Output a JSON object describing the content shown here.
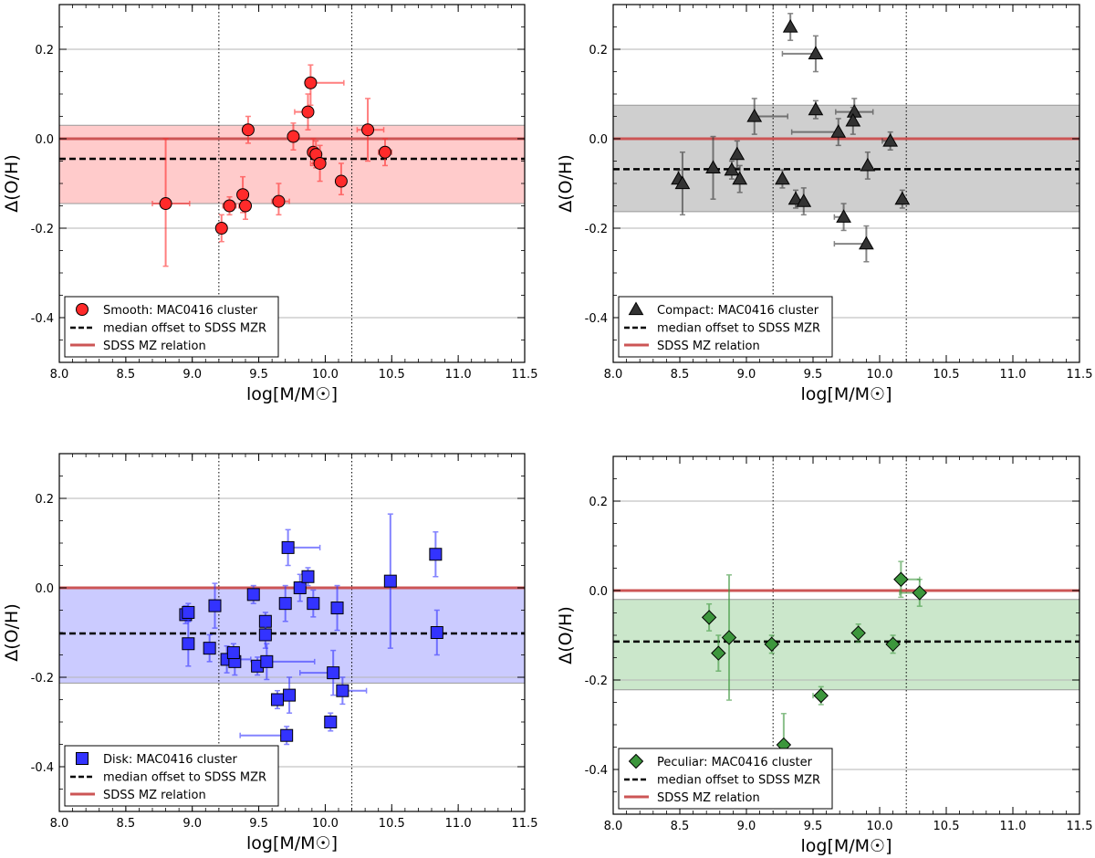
{
  "figure": {
    "x_tick_labels": [
      "8.0",
      "8.5",
      "9.0",
      "9.5",
      "10.0",
      "10.5",
      "11.0",
      "11.5"
    ],
    "y_tick_labels": [
      "0.2",
      "0.0",
      "-0.2",
      "-0.4"
    ]
  },
  "chart_data": [
    {
      "type": "scatter",
      "panel": "top-left",
      "xlabel": "log[M/M☉]",
      "ylabel": "Δ(O/H)",
      "xlim": [
        8.0,
        11.5
      ],
      "ylim": [
        -0.5,
        0.3
      ],
      "xticks": [
        8.0,
        8.5,
        9.0,
        9.5,
        10.0,
        10.5,
        11.0,
        11.5
      ],
      "yticks": [
        0.2,
        0.0,
        -0.2,
        -0.4
      ],
      "grid_y": [
        0.2,
        0.0,
        -0.2,
        -0.4
      ],
      "vlines": [
        9.2,
        10.2
      ],
      "reference_line": 0.0,
      "median_offset": -0.045,
      "band": [
        -0.145,
        0.03
      ],
      "color": "#ff2a2a",
      "band_color": "#ffc8c8",
      "marker": "circle",
      "legend": {
        "location": "lower-left",
        "entries": [
          "Smooth: MAC0416 cluster",
          "median offset to SDSS MZR",
          "SDSS MZ relation"
        ]
      },
      "points": [
        {
          "x": 8.8,
          "y": -0.145,
          "yerr": [
            0.14,
            0.145
          ],
          "xerr": [
            0.1,
            0.18
          ]
        },
        {
          "x": 9.22,
          "y": -0.2,
          "yerr": [
            0.03,
            0.03
          ],
          "xerr": [
            0.0,
            0.0
          ]
        },
        {
          "x": 9.28,
          "y": -0.15,
          "yerr": [
            0.02,
            0.02
          ],
          "xerr": [
            0.05,
            0.05
          ]
        },
        {
          "x": 9.38,
          "y": -0.125,
          "yerr": [
            0.04,
            0.04
          ],
          "xerr": [
            0.04,
            0.04
          ]
        },
        {
          "x": 9.4,
          "y": -0.15,
          "yerr": [
            0.03,
            0.03
          ],
          "xerr": [
            0.05,
            0.03
          ]
        },
        {
          "x": 9.42,
          "y": 0.02,
          "yerr": [
            0.03,
            0.03
          ],
          "xerr": [
            0.02,
            0.02
          ]
        },
        {
          "x": 9.65,
          "y": -0.14,
          "yerr": [
            0.03,
            0.04
          ],
          "xerr": [
            0.05,
            0.08
          ]
        },
        {
          "x": 9.76,
          "y": 0.005,
          "yerr": [
            0.03,
            0.03
          ],
          "xerr": [
            0.0,
            0.0
          ]
        },
        {
          "x": 9.87,
          "y": 0.06,
          "yerr": [
            0.04,
            0.04
          ],
          "xerr": [
            0.1,
            0.0
          ]
        },
        {
          "x": 9.89,
          "y": 0.125,
          "yerr": [
            0.05,
            0.04
          ],
          "xerr": [
            0.02,
            0.25
          ]
        },
        {
          "x": 9.91,
          "y": -0.03,
          "yerr": [
            0.03,
            0.03
          ],
          "xerr": [
            0.04,
            0.02
          ]
        },
        {
          "x": 9.93,
          "y": -0.035,
          "yerr": [
            0.03,
            0.03
          ],
          "xerr": [
            0.04,
            0.02
          ]
        },
        {
          "x": 9.96,
          "y": -0.055,
          "yerr": [
            0.04,
            0.04
          ],
          "xerr": [
            0.07,
            0.03
          ]
        },
        {
          "x": 10.12,
          "y": -0.095,
          "yerr": [
            0.03,
            0.04
          ],
          "xerr": [
            0.0,
            0.0
          ]
        },
        {
          "x": 10.32,
          "y": 0.02,
          "yerr": [
            0.07,
            0.07
          ],
          "xerr": [
            0.08,
            0.12
          ]
        },
        {
          "x": 10.45,
          "y": -0.03,
          "yerr": [
            0.03,
            0.03
          ],
          "xerr": [
            0.05,
            0.05
          ]
        }
      ]
    },
    {
      "type": "scatter",
      "panel": "top-right",
      "xlabel": "log[M/M☉]",
      "ylabel": "Δ(O/H)",
      "xlim": [
        8.0,
        11.5
      ],
      "ylim": [
        -0.5,
        0.3
      ],
      "xticks": [
        8.0,
        8.5,
        9.0,
        9.5,
        10.0,
        10.5,
        11.0,
        11.5
      ],
      "yticks": [
        0.2,
        0.0,
        -0.2,
        -0.4
      ],
      "grid_y": [
        0.2,
        0.0,
        -0.2,
        -0.4
      ],
      "vlines": [
        9.2,
        10.2
      ],
      "reference_line": 0.0,
      "median_offset": -0.068,
      "band": [
        -0.163,
        0.075
      ],
      "color": "#333333",
      "band_color": "#cccccc",
      "marker": "triangle",
      "legend": {
        "location": "lower-left",
        "entries": [
          "Compact: MAC0416 cluster",
          "median offset to SDSS MZR",
          "SDSS MZ relation"
        ]
      },
      "points": [
        {
          "x": 9.33,
          "y": 0.25,
          "yerr": [
            0.03,
            0.03
          ],
          "xerr": [
            0.0,
            0.0
          ]
        },
        {
          "x": 9.52,
          "y": 0.19,
          "yerr": [
            0.04,
            0.04
          ],
          "xerr": [
            0.25,
            0.0
          ]
        },
        {
          "x": 9.52,
          "y": 0.065,
          "yerr": [
            0.02,
            0.02
          ],
          "xerr": [
            0.0,
            0.0
          ]
        },
        {
          "x": 9.06,
          "y": 0.05,
          "yerr": [
            0.04,
            0.04
          ],
          "xerr": [
            0.0,
            0.25
          ]
        },
        {
          "x": 9.81,
          "y": 0.06,
          "yerr": [
            0.03,
            0.03
          ],
          "xerr": [
            0.14,
            0.14
          ]
        },
        {
          "x": 9.8,
          "y": 0.04,
          "yerr": [
            0.03,
            0.03
          ],
          "xerr": [
            0.0,
            0.0
          ]
        },
        {
          "x": 9.69,
          "y": 0.015,
          "yerr": [
            0.03,
            0.03
          ],
          "xerr": [
            0.35,
            0.0
          ]
        },
        {
          "x": 10.08,
          "y": -0.005,
          "yerr": [
            0.02,
            0.02
          ],
          "xerr": [
            0.06,
            0.0
          ]
        },
        {
          "x": 8.49,
          "y": -0.09,
          "yerr": [
            0.02,
            0.02
          ],
          "xerr": [
            0.0,
            0.0
          ]
        },
        {
          "x": 8.52,
          "y": -0.1,
          "yerr": [
            0.07,
            0.07
          ],
          "xerr": [
            0.0,
            0.0
          ]
        },
        {
          "x": 8.75,
          "y": -0.065,
          "yerr": [
            0.07,
            0.07
          ],
          "xerr": [
            0.0,
            0.0
          ]
        },
        {
          "x": 8.89,
          "y": -0.07,
          "yerr": [
            0.02,
            0.02
          ],
          "xerr": [
            0.0,
            0.0
          ]
        },
        {
          "x": 8.93,
          "y": -0.035,
          "yerr": [
            0.03,
            0.03
          ],
          "xerr": [
            0.0,
            0.0
          ]
        },
        {
          "x": 8.95,
          "y": -0.09,
          "yerr": [
            0.03,
            0.03
          ],
          "xerr": [
            0.0,
            0.0
          ]
        },
        {
          "x": 9.27,
          "y": -0.09,
          "yerr": [
            0.02,
            0.02
          ],
          "xerr": [
            0.0,
            0.0
          ]
        },
        {
          "x": 9.37,
          "y": -0.135,
          "yerr": [
            0.02,
            0.02
          ],
          "xerr": [
            0.0,
            0.0
          ]
        },
        {
          "x": 9.43,
          "y": -0.14,
          "yerr": [
            0.03,
            0.03
          ],
          "xerr": [
            0.06,
            0.0
          ]
        },
        {
          "x": 9.91,
          "y": -0.06,
          "yerr": [
            0.03,
            0.03
          ],
          "xerr": [
            0.0,
            0.0
          ]
        },
        {
          "x": 10.17,
          "y": -0.135,
          "yerr": [
            0.02,
            0.02
          ],
          "xerr": [
            0.0,
            0.0
          ]
        },
        {
          "x": 9.73,
          "y": -0.175,
          "yerr": [
            0.03,
            0.03
          ],
          "xerr": [
            0.07,
            0.0
          ]
        },
        {
          "x": 9.9,
          "y": -0.235,
          "yerr": [
            0.04,
            0.04
          ],
          "xerr": [
            0.24,
            0.0
          ]
        }
      ]
    },
    {
      "type": "scatter",
      "panel": "bottom-left",
      "xlabel": "log[M/M☉]",
      "ylabel": "Δ(O/H)",
      "xlim": [
        8.0,
        11.5
      ],
      "ylim": [
        -0.5,
        0.3
      ],
      "xticks": [
        8.0,
        8.5,
        9.0,
        9.5,
        10.0,
        10.5,
        11.0,
        11.5
      ],
      "yticks": [
        0.2,
        0.0,
        -0.2,
        -0.4
      ],
      "grid_y": [
        0.2,
        0.0,
        -0.2,
        -0.4
      ],
      "vlines": [
        9.2,
        10.2
      ],
      "reference_line": 0.0,
      "median_offset": -0.102,
      "band": [
        -0.213,
        0.0
      ],
      "color": "#3333ff",
      "band_color": "#c8c8ff",
      "marker": "square",
      "legend": {
        "location": "lower-left",
        "entries": [
          "Disk: MAC0416 cluster",
          "median offset to SDSS MZR",
          "SDSS MZ relation"
        ]
      },
      "points": [
        {
          "x": 8.95,
          "y": -0.06,
          "yerr": [
            0.02,
            0.02
          ],
          "xerr": [
            0.0,
            0.0
          ]
        },
        {
          "x": 8.97,
          "y": -0.125,
          "yerr": [
            0.05,
            0.05
          ],
          "xerr": [
            0.0,
            0.0
          ]
        },
        {
          "x": 8.97,
          "y": -0.055,
          "yerr": [
            0.02,
            0.02
          ],
          "xerr": [
            0.0,
            0.0
          ]
        },
        {
          "x": 9.17,
          "y": -0.04,
          "yerr": [
            0.05,
            0.05
          ],
          "xerr": [
            0.0,
            0.0
          ]
        },
        {
          "x": 9.13,
          "y": -0.135,
          "yerr": [
            0.03,
            0.03
          ],
          "xerr": [
            0.0,
            0.0
          ]
        },
        {
          "x": 9.26,
          "y": -0.16,
          "yerr": [
            0.03,
            0.03
          ],
          "xerr": [
            0.0,
            0.18
          ]
        },
        {
          "x": 9.32,
          "y": -0.165,
          "yerr": [
            0.03,
            0.03
          ],
          "xerr": [
            0.0,
            0.0
          ]
        },
        {
          "x": 9.31,
          "y": -0.145,
          "yerr": [
            0.02,
            0.02
          ],
          "xerr": [
            0.0,
            0.0
          ]
        },
        {
          "x": 9.46,
          "y": -0.015,
          "yerr": [
            0.02,
            0.02
          ],
          "xerr": [
            0.0,
            0.0
          ]
        },
        {
          "x": 9.49,
          "y": -0.175,
          "yerr": [
            0.02,
            0.02
          ],
          "xerr": [
            0.0,
            0.0
          ]
        },
        {
          "x": 9.55,
          "y": -0.075,
          "yerr": [
            0.02,
            0.02
          ],
          "xerr": [
            0.0,
            0.0
          ]
        },
        {
          "x": 9.55,
          "y": -0.105,
          "yerr": [
            0.03,
            0.03
          ],
          "xerr": [
            0.0,
            0.0
          ]
        },
        {
          "x": 9.56,
          "y": -0.165,
          "yerr": [
            0.04,
            0.04
          ],
          "xerr": [
            0.0,
            0.36
          ]
        },
        {
          "x": 9.64,
          "y": -0.25,
          "yerr": [
            0.02,
            0.02
          ],
          "xerr": [
            0.0,
            0.0
          ]
        },
        {
          "x": 9.7,
          "y": -0.035,
          "yerr": [
            0.04,
            0.04
          ],
          "xerr": [
            0.0,
            0.0
          ]
        },
        {
          "x": 9.72,
          "y": 0.09,
          "yerr": [
            0.04,
            0.04
          ],
          "xerr": [
            0.0,
            0.24
          ]
        },
        {
          "x": 9.73,
          "y": -0.24,
          "yerr": [
            0.04,
            0.04
          ],
          "xerr": [
            0.0,
            0.0
          ]
        },
        {
          "x": 9.71,
          "y": -0.33,
          "yerr": [
            0.02,
            0.02
          ],
          "xerr": [
            0.35,
            0.0
          ]
        },
        {
          "x": 9.81,
          "y": 0.0,
          "yerr": [
            0.03,
            0.03
          ],
          "xerr": [
            0.0,
            0.0
          ]
        },
        {
          "x": 9.87,
          "y": 0.025,
          "yerr": [
            0.02,
            0.02
          ],
          "xerr": [
            0.0,
            0.0
          ]
        },
        {
          "x": 9.91,
          "y": -0.035,
          "yerr": [
            0.03,
            0.03
          ],
          "xerr": [
            0.0,
            0.0
          ]
        },
        {
          "x": 10.06,
          "y": -0.19,
          "yerr": [
            0.05,
            0.05
          ],
          "xerr": [
            0.25,
            0.0
          ]
        },
        {
          "x": 10.04,
          "y": -0.3,
          "yerr": [
            0.02,
            0.02
          ],
          "xerr": [
            0.0,
            0.0
          ]
        },
        {
          "x": 10.09,
          "y": -0.045,
          "yerr": [
            0.05,
            0.05
          ],
          "xerr": [
            0.0,
            0.0
          ]
        },
        {
          "x": 10.13,
          "y": -0.23,
          "yerr": [
            0.03,
            0.03
          ],
          "xerr": [
            0.0,
            0.18
          ]
        },
        {
          "x": 10.49,
          "y": 0.015,
          "yerr": [
            0.15,
            0.15
          ],
          "xerr": [
            0.0,
            0.0
          ]
        },
        {
          "x": 10.83,
          "y": 0.075,
          "yerr": [
            0.05,
            0.05
          ],
          "xerr": [
            0.0,
            0.0
          ]
        },
        {
          "x": 10.84,
          "y": -0.1,
          "yerr": [
            0.05,
            0.05
          ],
          "xerr": [
            0.0,
            0.0
          ]
        }
      ]
    },
    {
      "type": "scatter",
      "panel": "bottom-right",
      "xlabel": "log[M/M☉]",
      "ylabel": "Δ(O/H)",
      "xlim": [
        8.0,
        11.5
      ],
      "ylim": [
        -0.5,
        0.3
      ],
      "xticks": [
        8.0,
        8.5,
        9.0,
        9.5,
        10.0,
        10.5,
        11.0,
        11.5
      ],
      "yticks": [
        0.2,
        0.0,
        -0.2,
        -0.4
      ],
      "grid_y": [
        0.2,
        0.0,
        -0.2,
        -0.4
      ],
      "vlines": [
        9.2,
        10.2
      ],
      "reference_line": 0.0,
      "median_offset": -0.114,
      "band": [
        -0.222,
        -0.02
      ],
      "color": "#3c963c",
      "band_color": "#c8e6c8",
      "marker": "diamond",
      "legend": {
        "location": "lower-left",
        "entries": [
          "Peculiar: MAC0416 cluster",
          "median offset to SDSS MZR",
          "SDSS MZ relation"
        ]
      },
      "points": [
        {
          "x": 8.72,
          "y": -0.06,
          "yerr": [
            0.03,
            0.03
          ],
          "xerr": [
            0.0,
            0.0
          ]
        },
        {
          "x": 8.79,
          "y": -0.14,
          "yerr": [
            0.04,
            0.04
          ],
          "xerr": [
            0.0,
            0.0
          ]
        },
        {
          "x": 8.87,
          "y": -0.105,
          "yerr": [
            0.14,
            0.14
          ],
          "xerr": [
            0.0,
            0.0
          ]
        },
        {
          "x": 9.19,
          "y": -0.12,
          "yerr": [
            0.02,
            0.02
          ],
          "xerr": [
            0.0,
            0.0
          ]
        },
        {
          "x": 9.28,
          "y": -0.345,
          "yerr": [
            0.07,
            0.07
          ],
          "xerr": [
            0.0,
            0.0
          ]
        },
        {
          "x": 9.56,
          "y": -0.235,
          "yerr": [
            0.02,
            0.02
          ],
          "xerr": [
            0.06,
            0.0
          ]
        },
        {
          "x": 9.84,
          "y": -0.095,
          "yerr": [
            0.02,
            0.02
          ],
          "xerr": [
            0.0,
            0.0
          ]
        },
        {
          "x": 10.1,
          "y": -0.12,
          "yerr": [
            0.02,
            0.02
          ],
          "xerr": [
            0.0,
            0.0
          ]
        },
        {
          "x": 10.16,
          "y": 0.025,
          "yerr": [
            0.04,
            0.04
          ],
          "xerr": [
            0.0,
            0.14
          ]
        },
        {
          "x": 10.3,
          "y": -0.005,
          "yerr": [
            0.03,
            0.03
          ],
          "xerr": [
            0.15,
            0.0
          ]
        }
      ]
    }
  ]
}
